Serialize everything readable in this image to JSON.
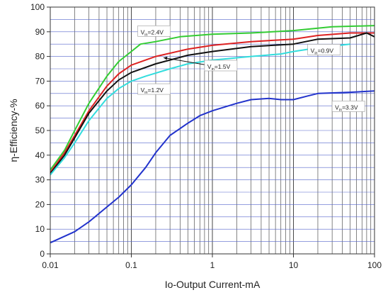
{
  "chart_data": {
    "type": "line",
    "xlabel": "Io-Output Current-mA",
    "ylabel": "η-Efficiency-%",
    "xscale": "log",
    "xlim": [
      0.01,
      100
    ],
    "ylim": [
      0,
      100
    ],
    "xticks": [
      0.01,
      0.1,
      1,
      10,
      100
    ],
    "xtick_labels": [
      "0.01",
      "0.1",
      "1",
      "10",
      "100"
    ],
    "yticks": [
      0,
      10,
      20,
      30,
      40,
      50,
      60,
      70,
      80,
      90,
      100
    ],
    "ytick_labels": [
      "0",
      "10",
      "20",
      "30",
      "40",
      "50",
      "60",
      "70",
      "80",
      "90",
      "100"
    ],
    "grid": true,
    "series": [
      {
        "name": "Vin=2.4V",
        "color": "#33cc33",
        "points": [
          [
            0.01,
            34
          ],
          [
            0.015,
            42
          ],
          [
            0.02,
            50
          ],
          [
            0.03,
            61
          ],
          [
            0.05,
            72
          ],
          [
            0.07,
            78
          ],
          [
            0.1,
            82
          ],
          [
            0.13,
            85
          ],
          [
            0.2,
            86
          ],
          [
            0.4,
            88
          ],
          [
            1,
            89
          ],
          [
            3,
            89.5
          ],
          [
            10,
            90.5
          ],
          [
            30,
            92
          ],
          [
            100,
            92.5
          ]
        ]
      },
      {
        "name": "",
        "color": "#dd2222",
        "points": [
          [
            0.01,
            33
          ],
          [
            0.015,
            41
          ],
          [
            0.02,
            48
          ],
          [
            0.03,
            58
          ],
          [
            0.05,
            68
          ],
          [
            0.07,
            73
          ],
          [
            0.1,
            76.5
          ],
          [
            0.2,
            80
          ],
          [
            0.5,
            83
          ],
          [
            1,
            84.5
          ],
          [
            3,
            86
          ],
          [
            10,
            87
          ],
          [
            20,
            88.5
          ],
          [
            50,
            89.5
          ],
          [
            100,
            89.5
          ]
        ]
      },
      {
        "name": "Vin=1.5V",
        "color": "#111111",
        "points": [
          [
            0.01,
            32.5
          ],
          [
            0.015,
            40
          ],
          [
            0.02,
            47
          ],
          [
            0.03,
            57
          ],
          [
            0.05,
            66
          ],
          [
            0.07,
            70.5
          ],
          [
            0.1,
            73.5
          ],
          [
            0.2,
            77
          ],
          [
            0.5,
            80.5
          ],
          [
            1,
            82
          ],
          [
            3,
            84
          ],
          [
            10,
            85
          ],
          [
            20,
            87
          ],
          [
            50,
            87.5
          ],
          [
            80,
            89.5
          ],
          [
            100,
            88
          ]
        ]
      },
      {
        "name": "Vin=0.9V",
        "color": "#33dddd",
        "points": [
          [
            0.01,
            32
          ],
          [
            0.015,
            39
          ],
          [
            0.02,
            45
          ],
          [
            0.03,
            54
          ],
          [
            0.05,
            63
          ],
          [
            0.07,
            67
          ],
          [
            0.1,
            70
          ],
          [
            0.15,
            72
          ],
          [
            0.3,
            75
          ],
          [
            0.5,
            77
          ],
          [
            1,
            78.5
          ],
          [
            3,
            80
          ],
          [
            7,
            81
          ],
          [
            10,
            82
          ],
          [
            20,
            83.5
          ],
          [
            50,
            85
          ]
        ]
      },
      {
        "name": "Vin=3.3V",
        "color": "#2233cc",
        "points": [
          [
            0.01,
            4.5
          ],
          [
            0.02,
            9
          ],
          [
            0.03,
            13
          ],
          [
            0.05,
            19
          ],
          [
            0.07,
            23
          ],
          [
            0.1,
            28
          ],
          [
            0.15,
            35
          ],
          [
            0.2,
            41
          ],
          [
            0.3,
            48
          ],
          [
            0.5,
            53
          ],
          [
            0.7,
            56
          ],
          [
            1,
            58
          ],
          [
            2,
            61
          ],
          [
            3,
            62.5
          ],
          [
            5,
            63
          ],
          [
            7,
            62.5
          ],
          [
            10,
            62.5
          ],
          [
            15,
            64
          ],
          [
            20,
            65
          ],
          [
            50,
            65.5
          ],
          [
            100,
            66
          ]
        ]
      }
    ],
    "annotations": [
      {
        "name": "annotation-vin-2-4v",
        "label": "V",
        "sub": "in",
        "value": "=2.4V",
        "at": [
          0.12,
          89
        ],
        "arrow_to": null
      },
      {
        "name": "annotation-vin-1-5v",
        "label": "V",
        "sub": "in",
        "value": "=1.5V",
        "at": [
          0.8,
          75
        ],
        "arrow_to": [
          0.25,
          79.5
        ]
      },
      {
        "name": "annotation-vin-1-2v",
        "label": "V",
        "sub": "in",
        "value": "=1.2V",
        "at": [
          0.12,
          65.5
        ],
        "arrow_to": null
      },
      {
        "name": "annotation-vin-0-9v",
        "label": "V",
        "sub": "in",
        "value": "=0.9V",
        "at": [
          15,
          81.5
        ],
        "arrow_to": null
      },
      {
        "name": "annotation-vin-3-3v",
        "label": "V",
        "sub": "in",
        "value": "=3.3V",
        "at": [
          30,
          58.5
        ],
        "arrow_to": null
      }
    ]
  }
}
